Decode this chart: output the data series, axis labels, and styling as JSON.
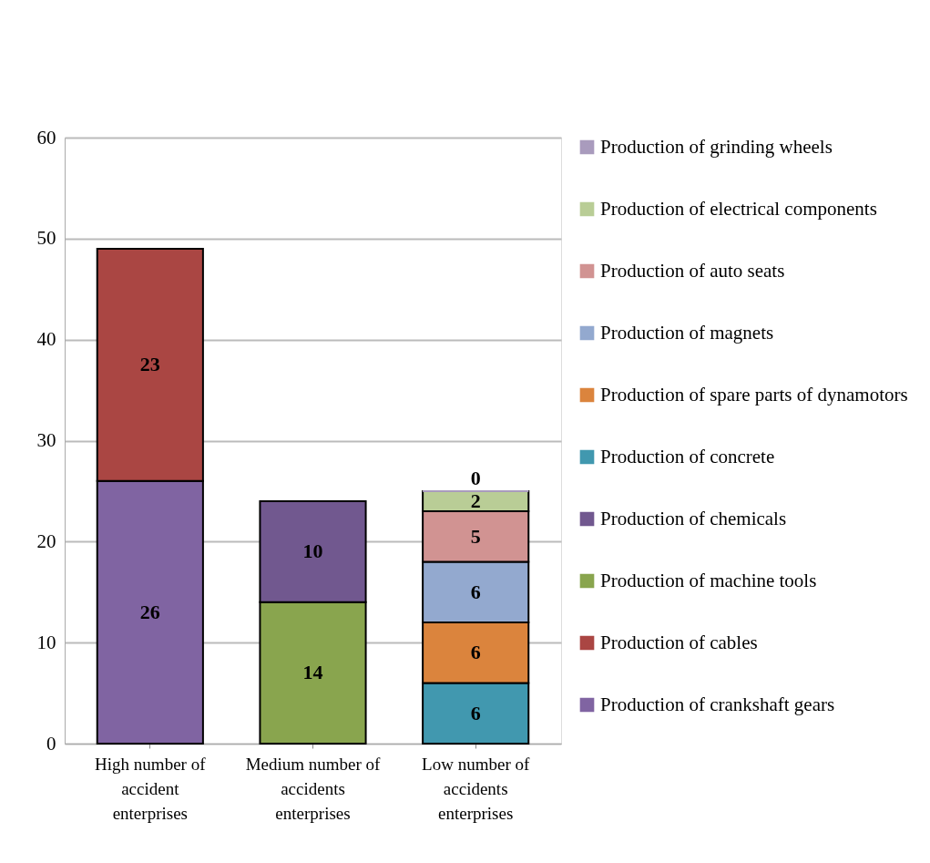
{
  "chart_data": {
    "type": "bar",
    "stacked": true,
    "data_labels": true,
    "grid": "y",
    "legend": "right",
    "categories": [
      "High number of accident enterprises",
      "Medium number of accidents enterprises",
      "Low number of accidents enterprises"
    ],
    "ylim": [
      0,
      60
    ],
    "yticks": [
      0,
      10,
      20,
      30,
      40,
      50,
      60
    ],
    "series": [
      {
        "name": "Production of crankshaft gears",
        "color": "#8064a2",
        "values": [
          26,
          null,
          null
        ]
      },
      {
        "name": "Production of cables",
        "color": "#aa4643",
        "values": [
          23,
          null,
          null
        ]
      },
      {
        "name": "Production of machine tools",
        "color": "#89a54e",
        "values": [
          null,
          14,
          null
        ]
      },
      {
        "name": "Production of chemicals",
        "color": "#71588f",
        "values": [
          null,
          10,
          null
        ]
      },
      {
        "name": "Production of concrete",
        "color": "#4198af",
        "values": [
          null,
          null,
          6
        ]
      },
      {
        "name": "Production of spare parts of dynamotors",
        "color": "#db843d",
        "values": [
          null,
          null,
          6
        ]
      },
      {
        "name": "Production of magnets",
        "color": "#93a9cf",
        "values": [
          null,
          null,
          6
        ]
      },
      {
        "name": "Production of auto seats",
        "color": "#d19392",
        "values": [
          null,
          null,
          5
        ]
      },
      {
        "name": "Production of electrical components",
        "color": "#b9cd96",
        "values": [
          null,
          null,
          2
        ]
      },
      {
        "name": "Production of grinding wheels",
        "color": "#a99bbd",
        "values": [
          null,
          null,
          0
        ]
      }
    ]
  }
}
